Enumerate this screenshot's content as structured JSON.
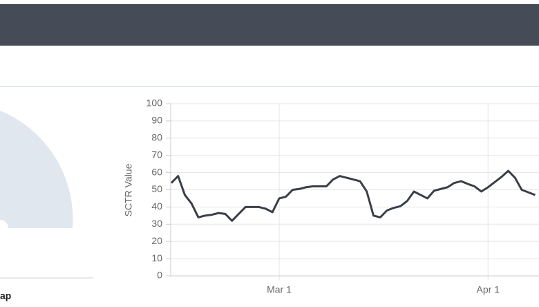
{
  "chart_data": {
    "type": "line",
    "y_label": "SCTR Value",
    "categories": [
      null,
      null,
      null,
      null,
      null,
      null,
      null,
      null,
      null,
      null,
      null,
      null,
      null,
      null,
      null,
      null,
      "Mar 1",
      null,
      null,
      null,
      null,
      null,
      null,
      null,
      null,
      null,
      null,
      null,
      null,
      null,
      null,
      null,
      null,
      null,
      null,
      null,
      null,
      null,
      null,
      null,
      null,
      null,
      null,
      null,
      null,
      null,
      null,
      "Apr 1",
      null,
      null,
      null,
      null,
      null,
      null,
      null
    ],
    "series": [
      {
        "color": "#3a3f47",
        "values": [
          54,
          58,
          47,
          42,
          34,
          35,
          35.5,
          36.5,
          36,
          32,
          36,
          40,
          40,
          40,
          39,
          37,
          45,
          46,
          50,
          50.5,
          51.5,
          52,
          52,
          52,
          56,
          58,
          57,
          56,
          55,
          49,
          35,
          34,
          38,
          39.5,
          40.5,
          43.5,
          49,
          47,
          45,
          49.5,
          50.5,
          51.5,
          54,
          55,
          53.4,
          52,
          49,
          51.5,
          54.5,
          57.5,
          61,
          57,
          50,
          48.5,
          47
        ]
      }
    ],
    "ylim": [
      0,
      100
    ],
    "yticks": [
      0,
      10,
      20,
      30,
      40,
      50,
      60,
      70,
      80,
      90,
      100
    ],
    "grid": true
  },
  "panel_label": "ap"
}
